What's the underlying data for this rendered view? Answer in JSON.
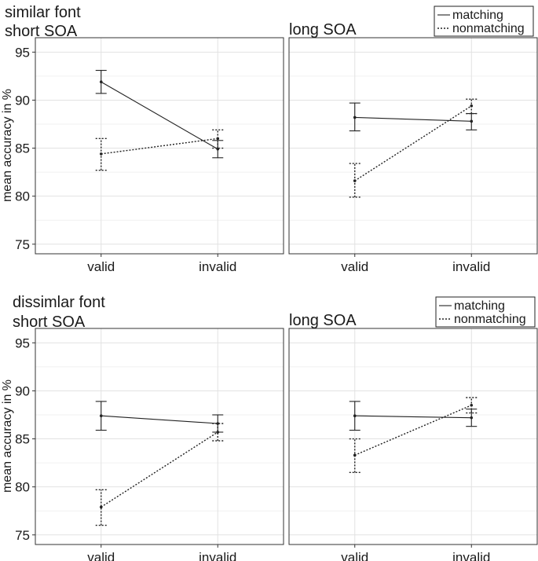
{
  "chart_data": [
    {
      "type": "line",
      "title_lines": [
        "similar font",
        "short SOA"
      ],
      "ylabel": "mean accuracy in %",
      "categories": [
        "valid",
        "invalid"
      ],
      "ylim": [
        74,
        96.5
      ],
      "yticks": [
        75,
        80,
        85,
        90,
        95
      ],
      "grid": true,
      "series": [
        {
          "name": "matching",
          "values": [
            91.9,
            84.9
          ],
          "err_low": [
            90.7,
            84.0
          ],
          "err_high": [
            93.1,
            85.8
          ],
          "style": "solid"
        },
        {
          "name": "nonmatching",
          "values": [
            84.4,
            86.0
          ],
          "err_low": [
            82.7,
            85.0
          ],
          "err_high": [
            86.0,
            86.9
          ],
          "style": "dotted"
        }
      ]
    },
    {
      "type": "line",
      "title_lines": [
        "long SOA"
      ],
      "ylabel": "",
      "categories": [
        "valid",
        "invalid"
      ],
      "ylim": [
        74,
        96.5
      ],
      "yticks": [
        75,
        80,
        85,
        90,
        95
      ],
      "grid": true,
      "legend": "top-right",
      "series": [
        {
          "name": "matching",
          "values": [
            88.2,
            87.8
          ],
          "err_low": [
            86.8,
            86.9
          ],
          "err_high": [
            89.7,
            88.6
          ],
          "style": "solid"
        },
        {
          "name": "nonmatching",
          "values": [
            81.6,
            89.4
          ],
          "err_low": [
            79.9,
            88.6
          ],
          "err_high": [
            83.4,
            90.1
          ],
          "style": "dotted"
        }
      ]
    },
    {
      "type": "line",
      "title_lines": [
        "dissimlar font",
        "short SOA"
      ],
      "ylabel": "mean accuracy in %",
      "categories": [
        "valid",
        "invalid"
      ],
      "ylim": [
        74,
        96.5
      ],
      "yticks": [
        75,
        80,
        85,
        90,
        95
      ],
      "grid": true,
      "series": [
        {
          "name": "matching",
          "values": [
            87.4,
            86.6
          ],
          "err_low": [
            85.9,
            85.7
          ],
          "err_high": [
            88.9,
            87.5
          ],
          "style": "solid"
        },
        {
          "name": "nonmatching",
          "values": [
            77.9,
            85.7
          ],
          "err_low": [
            76.0,
            84.8
          ],
          "err_high": [
            79.7,
            86.6
          ],
          "style": "dotted"
        }
      ]
    },
    {
      "type": "line",
      "title_lines": [
        "long SOA"
      ],
      "ylabel": "",
      "categories": [
        "valid",
        "invalid"
      ],
      "ylim": [
        74,
        96.5
      ],
      "yticks": [
        75,
        80,
        85,
        90,
        95
      ],
      "grid": true,
      "legend": "top-right",
      "series": [
        {
          "name": "matching",
          "values": [
            87.4,
            87.2
          ],
          "err_low": [
            85.9,
            86.3
          ],
          "err_high": [
            88.9,
            88.1
          ],
          "style": "solid"
        },
        {
          "name": "nonmatching",
          "values": [
            83.3,
            88.5
          ],
          "err_low": [
            81.5,
            87.7
          ],
          "err_high": [
            85.0,
            89.3
          ],
          "style": "dotted"
        }
      ]
    }
  ]
}
